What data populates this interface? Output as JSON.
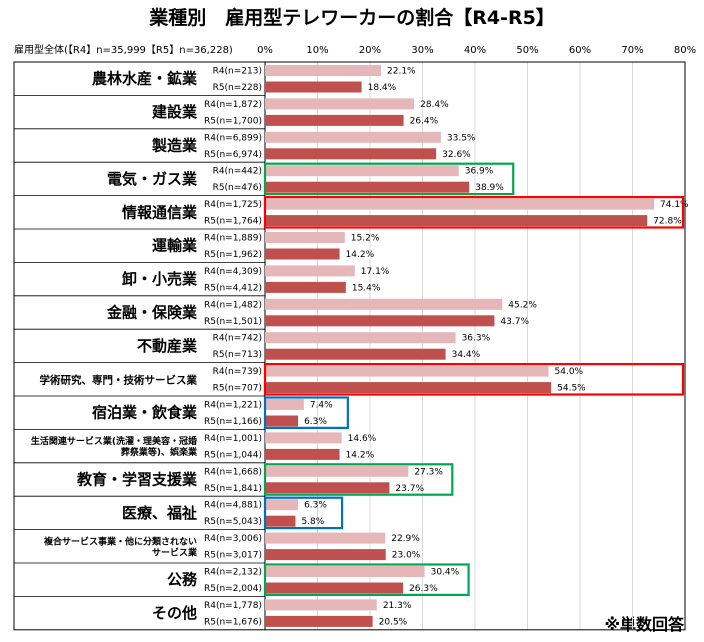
{
  "chart_data": {
    "type": "bar",
    "title": "業種別　雇用型テレワーカーの割合【R4-R5】",
    "axis_header": "雇用型全体(【R4】n=35,999【R5】n=36,228)",
    "xlim": [
      0,
      80
    ],
    "x_ticks": [
      "0%",
      "10%",
      "20%",
      "30%",
      "40%",
      "50%",
      "60%",
      "70%",
      "80%"
    ],
    "note": "※単数回答",
    "colors": {
      "R4": "#e6b7b8",
      "R5": "#c0504d",
      "green": "#00a651",
      "red": "#ff0000",
      "blue": "#0070c0"
    },
    "categories": [
      {
        "name": [
          "農林水産・鉱業"
        ],
        "size": "big",
        "r4_label": "R4(n=213)",
        "r5_label": "R5(n=228)",
        "r4": 22.1,
        "r5": 18.4,
        "r4_text": "22.1%",
        "r5_text": "18.4%",
        "highlight": null
      },
      {
        "name": [
          "建設業"
        ],
        "size": "big",
        "r4_label": "R4(n=1,872)",
        "r5_label": "R5(n=1,700)",
        "r4": 28.4,
        "r5": 26.4,
        "r4_text": "28.4%",
        "r5_text": "26.4%",
        "highlight": null
      },
      {
        "name": [
          "製造業"
        ],
        "size": "big",
        "r4_label": "R4(n=6,899)",
        "r5_label": "R5(n=6,974)",
        "r4": 33.5,
        "r5": 32.6,
        "r4_text": "33.5%",
        "r5_text": "32.6%",
        "highlight": null
      },
      {
        "name": [
          "電気・ガス業"
        ],
        "size": "big",
        "r4_label": "R4(n=442)",
        "r5_label": "R5(n=476)",
        "r4": 36.9,
        "r5": 38.9,
        "r4_text": "36.9%",
        "r5_text": "38.9%",
        "highlight": "green"
      },
      {
        "name": [
          "情報通信業"
        ],
        "size": "big",
        "r4_label": "R4(n=1,725)",
        "r5_label": "R5(n=1,764)",
        "r4": 74.1,
        "r5": 72.8,
        "r4_text": "74.1%",
        "r5_text": "72.8%",
        "highlight": "red"
      },
      {
        "name": [
          "運輸業"
        ],
        "size": "big",
        "r4_label": "R4(n=1,889)",
        "r5_label": "R5(n=1,962)",
        "r4": 15.2,
        "r5": 14.2,
        "r4_text": "15.2%",
        "r5_text": "14.2%",
        "highlight": null
      },
      {
        "name": [
          "卸・小売業"
        ],
        "size": "big",
        "r4_label": "R4(n=4,309)",
        "r5_label": "R5(n=4,412)",
        "r4": 17.1,
        "r5": 15.4,
        "r4_text": "17.1%",
        "r5_text": "15.4%",
        "highlight": null
      },
      {
        "name": [
          "金融・保険業"
        ],
        "size": "big",
        "r4_label": "R4(n=1,482)",
        "r5_label": "R5(n=1,501)",
        "r4": 45.2,
        "r5": 43.7,
        "r4_text": "45.2%",
        "r5_text": "43.7%",
        "highlight": null
      },
      {
        "name": [
          "不動産業"
        ],
        "size": "big",
        "r4_label": "R4(n=742)",
        "r5_label": "R5(n=713)",
        "r4": 36.3,
        "r5": 34.4,
        "r4_text": "36.3%",
        "r5_text": "34.4%",
        "highlight": null
      },
      {
        "name": [
          "学術研究、専門・技術サービス業"
        ],
        "size": "med",
        "r4_label": "R4(n=739)",
        "r5_label": "R5(n=707)",
        "r4": 54.0,
        "r5": 54.5,
        "r4_text": "54.0%",
        "r5_text": "54.5%",
        "highlight": "red"
      },
      {
        "name": [
          "宿泊業・飲食業"
        ],
        "size": "big",
        "r4_label": "R4(n=1,221)",
        "r5_label": "R5(n=1,166)",
        "r4": 7.4,
        "r5": 6.3,
        "r4_text": "7.4%",
        "r5_text": "6.3%",
        "highlight": "blue"
      },
      {
        "name": [
          "生活関連サービス業(洗濯・理美容・冠婚",
          "葬祭業等)、娯楽業"
        ],
        "size": "small",
        "r4_label": "R4(n=1,001)",
        "r5_label": "R5(n=1,044)",
        "r4": 14.6,
        "r5": 14.2,
        "r4_text": "14.6%",
        "r5_text": "14.2%",
        "highlight": null
      },
      {
        "name": [
          "教育・学習支援業"
        ],
        "size": "big",
        "r4_label": "R4(n=1,668)",
        "r5_label": "R5(n=1,841)",
        "r4": 27.3,
        "r5": 23.7,
        "r4_text": "27.3%",
        "r5_text": "23.7%",
        "highlight": "green"
      },
      {
        "name": [
          "医療、福祉"
        ],
        "size": "big",
        "r4_label": "R4(n=4,881)",
        "r5_label": "R5(n=5,043)",
        "r4": 6.3,
        "r5": 5.8,
        "r4_text": "6.3%",
        "r5_text": "5.8%",
        "highlight": "blue"
      },
      {
        "name": [
          "複合サービス事業・他に分類されない",
          "サービス業"
        ],
        "size": "small",
        "r4_label": "R4(n=3,006)",
        "r5_label": "R5(n=3,017)",
        "r4": 22.9,
        "r5": 23.0,
        "r4_text": "22.9%",
        "r5_text": "23.0%",
        "highlight": null
      },
      {
        "name": [
          "公務"
        ],
        "size": "big",
        "r4_label": "R4(n=2,132)",
        "r5_label": "R5(n=2,004)",
        "r4": 30.4,
        "r5": 26.3,
        "r4_text": "30.4%",
        "r5_text": "26.3%",
        "highlight": "green"
      },
      {
        "name": [
          "その他"
        ],
        "size": "big",
        "r4_label": "R4(n=1,778)",
        "r5_label": "R5(n=1,676)",
        "r4": 21.3,
        "r5": 20.5,
        "r4_text": "21.3%",
        "r5_text": "20.5%",
        "highlight": null
      }
    ]
  }
}
